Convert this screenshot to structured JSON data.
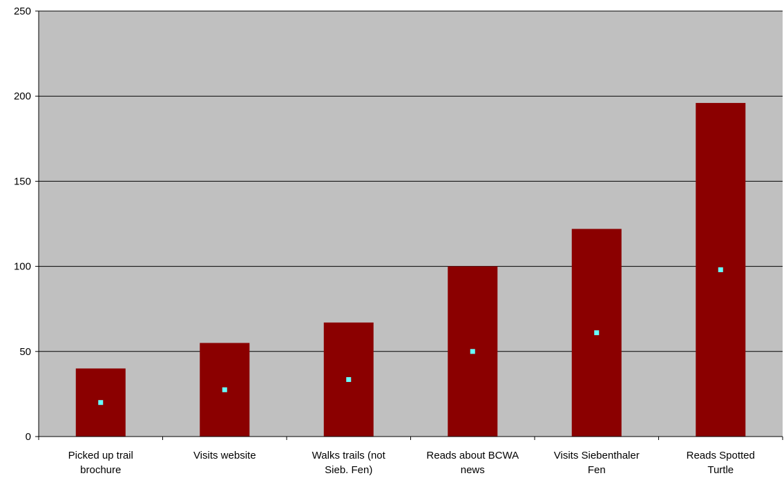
{
  "chart_data": {
    "type": "bar",
    "categories": [
      [
        "Picked up trail",
        "brochure"
      ],
      [
        "Visits website"
      ],
      [
        "Walks trails (not",
        "Sieb. Fen)"
      ],
      [
        "Reads about BCWA",
        "news"
      ],
      [
        "Visits Siebenthaler",
        "Fen"
      ],
      [
        "Reads Spotted",
        "Turtle"
      ]
    ],
    "series": [
      {
        "values": [
          40,
          55,
          67,
          100,
          122,
          196
        ],
        "color": "#8b0000"
      },
      {
        "values": [
          20,
          27.5,
          33.5,
          50,
          61,
          98
        ],
        "color": "#66ffff",
        "marker": "square"
      }
    ],
    "ylim": [
      0,
      250
    ],
    "yticks": [
      0,
      50,
      100,
      150,
      200,
      250
    ],
    "grid": true,
    "plot_background": "#c0c0c0"
  }
}
